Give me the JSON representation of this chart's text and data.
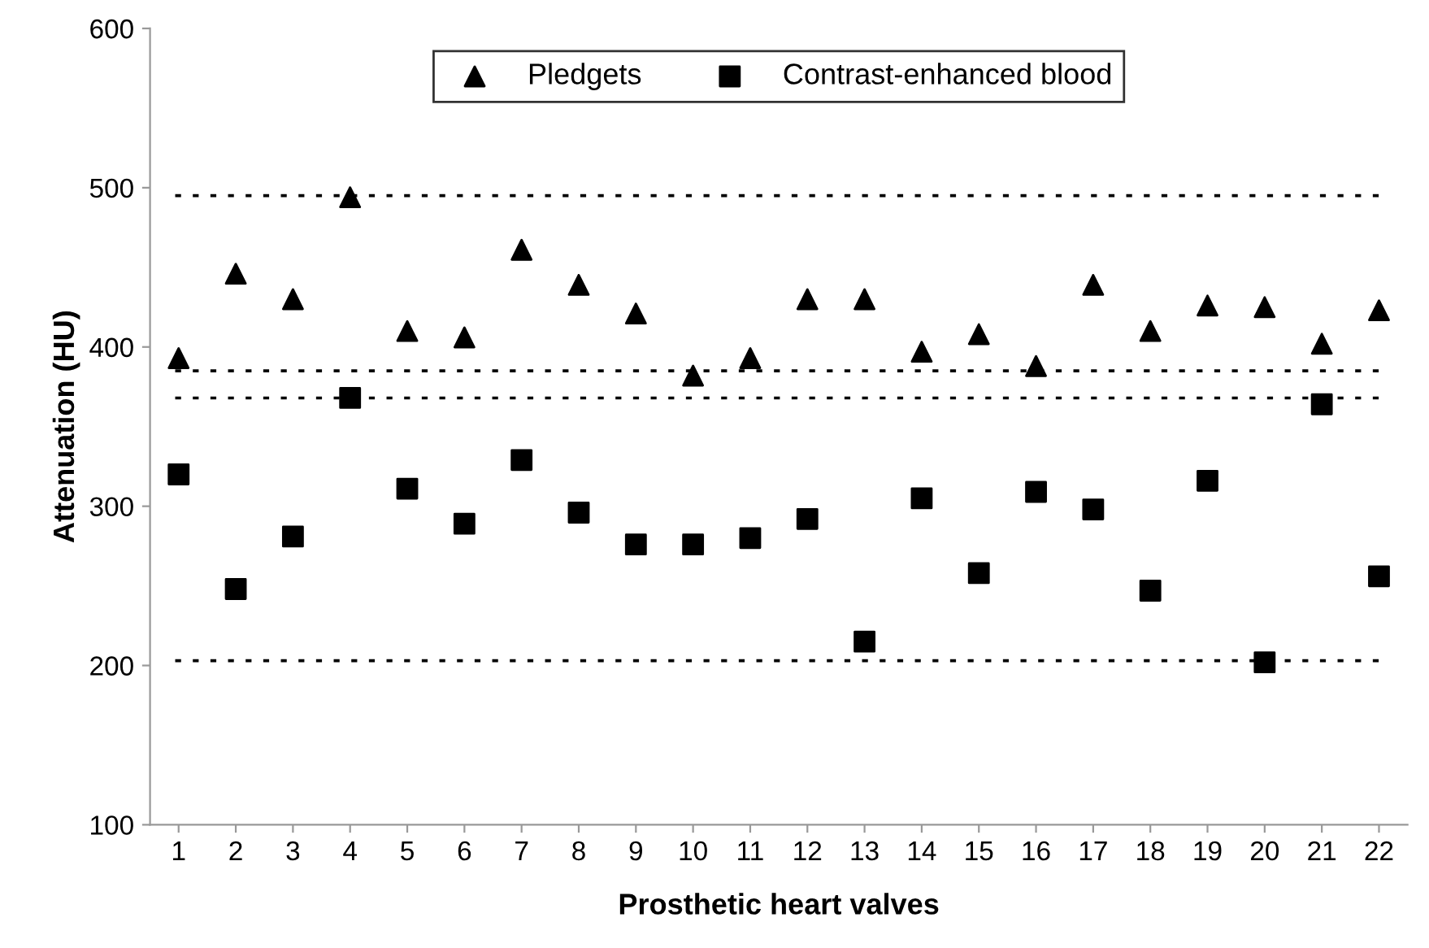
{
  "chart_data": {
    "type": "scatter",
    "xlabel": "Prosthetic heart valves",
    "ylabel": "Attenuation (HU)",
    "categories": [
      "1",
      "2",
      "3",
      "4",
      "5",
      "6",
      "7",
      "8",
      "9",
      "10",
      "11",
      "12",
      "13",
      "14",
      "15",
      "16",
      "17",
      "18",
      "19",
      "20",
      "21",
      "22"
    ],
    "series": [
      {
        "name": "Pledgets",
        "color": "#000000",
        "marker": "triangle",
        "values": [
          393,
          446,
          430,
          494,
          410,
          406,
          461,
          439,
          421,
          382,
          393,
          430,
          430,
          397,
          408,
          388,
          439,
          410,
          426,
          425,
          402,
          423
        ]
      },
      {
        "name": "Contrast-enhanced blood",
        "color": "#000000",
        "marker": "square",
        "values": [
          320,
          248,
          281,
          368,
          311,
          289,
          329,
          296,
          276,
          276,
          280,
          292,
          215,
          305,
          258,
          309,
          298,
          247,
          316,
          202,
          364,
          256
        ]
      }
    ],
    "ylim": [
      100,
      600
    ],
    "yticks": [
      100,
      200,
      300,
      400,
      500,
      600
    ],
    "ref_lines": [
      {
        "axis": "y",
        "value": 495,
        "color": "#000000",
        "line_style": "dotted"
      },
      {
        "axis": "y",
        "value": 385,
        "color": "#000000",
        "line_style": "dotted"
      },
      {
        "axis": "y",
        "value": 368,
        "color": "#000000",
        "line_style": "dotted"
      },
      {
        "axis": "y",
        "value": 203,
        "color": "#000000",
        "line_style": "dotted"
      }
    ],
    "grid": false,
    "legend": "top"
  }
}
